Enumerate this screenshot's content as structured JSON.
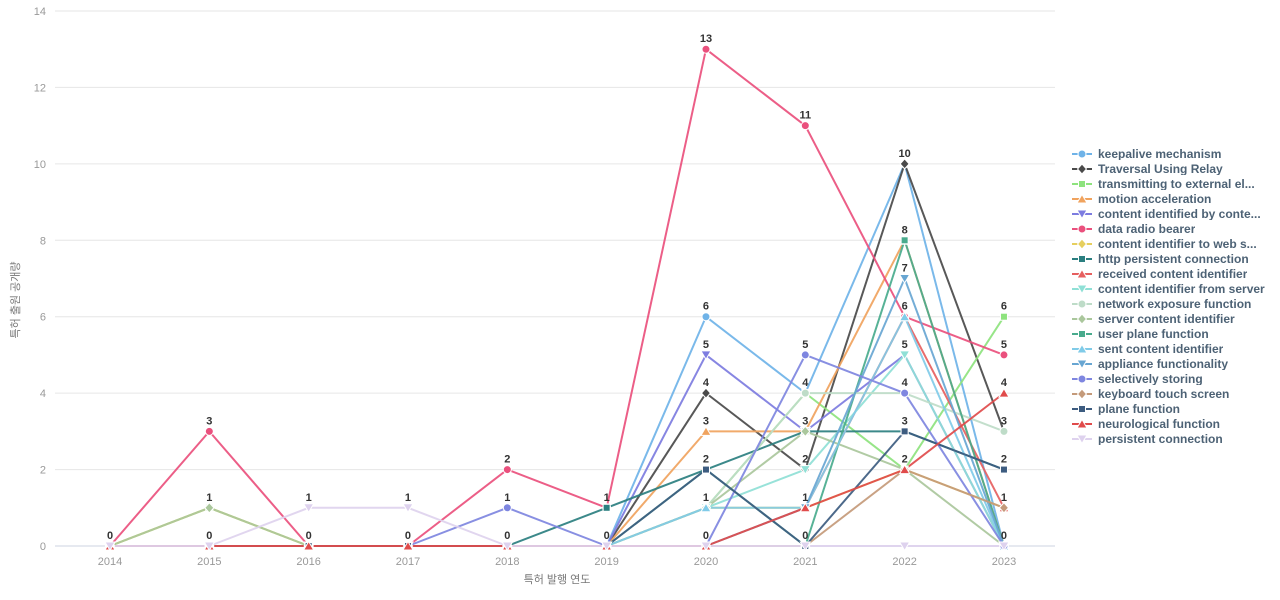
{
  "chart_data": {
    "type": "line",
    "title": "",
    "xlabel": "특허 발행 연도",
    "ylabel": "특허 출원 공개량",
    "x": [
      2014,
      2015,
      2016,
      2017,
      2018,
      2019,
      2020,
      2021,
      2022,
      2023
    ],
    "ylim": [
      0,
      14
    ],
    "yticks": [
      0,
      2,
      4,
      6,
      8,
      10,
      12,
      14
    ],
    "grid": true,
    "legend_position": "right",
    "series": [
      {
        "name": "keepalive mechanism",
        "color": "#6fb3e8",
        "marker": "circle",
        "values": [
          0,
          0,
          0,
          0,
          0,
          0,
          6,
          4,
          10,
          0
        ]
      },
      {
        "name": "Traversal Using Relay",
        "color": "#4a4a4a",
        "marker": "diamond",
        "values": [
          0,
          0,
          0,
          0,
          0,
          0,
          4,
          2,
          10,
          3
        ]
      },
      {
        "name": "transmitting to external el...",
        "color": "#8ee37e",
        "marker": "square",
        "values": [
          0,
          1,
          0,
          0,
          0,
          0,
          1,
          4,
          2,
          6
        ]
      },
      {
        "name": "motion acceleration",
        "color": "#f0a35e",
        "marker": "triangle",
        "values": [
          0,
          0,
          0,
          0,
          0,
          0,
          3,
          3,
          8,
          0
        ]
      },
      {
        "name": "content identified by conte...",
        "color": "#7d7ce0",
        "marker": "triangle-down",
        "values": [
          0,
          0,
          0,
          0,
          0,
          0,
          5,
          3,
          5,
          0
        ]
      },
      {
        "name": "data radio bearer",
        "color": "#ea507d",
        "marker": "circle",
        "values": [
          0,
          3,
          0,
          0,
          2,
          1,
          13,
          11,
          6,
          5
        ]
      },
      {
        "name": "content identifier to web s...",
        "color": "#e6cf5e",
        "marker": "diamond",
        "values": [
          0,
          1,
          0,
          0,
          0,
          0,
          1,
          1,
          2,
          1
        ]
      },
      {
        "name": "http persistent connection",
        "color": "#2b7f80",
        "marker": "square",
        "values": [
          0,
          0,
          0,
          0,
          0,
          1,
          2,
          3,
          3,
          2
        ]
      },
      {
        "name": "received content identifier",
        "color": "#e65f5f",
        "marker": "triangle",
        "values": [
          0,
          0,
          0,
          0,
          0,
          0,
          0,
          1,
          6,
          1
        ]
      },
      {
        "name": "content identifier from server",
        "color": "#8fe0d6",
        "marker": "triangle-down",
        "values": [
          0,
          0,
          0,
          0,
          0,
          0,
          1,
          2,
          5,
          0
        ]
      },
      {
        "name": "network exposure function",
        "color": "#bedcc8",
        "marker": "circle",
        "values": [
          0,
          0,
          0,
          0,
          0,
          0,
          1,
          4,
          4,
          3
        ]
      },
      {
        "name": "server content identifier",
        "color": "#aac79c",
        "marker": "diamond",
        "values": [
          0,
          1,
          0,
          0,
          0,
          0,
          1,
          3,
          2,
          0
        ]
      },
      {
        "name": "user plane function",
        "color": "#49ab8d",
        "marker": "square",
        "values": [
          0,
          0,
          0,
          0,
          0,
          0,
          2,
          0,
          8,
          0
        ]
      },
      {
        "name": "sent content identifier",
        "color": "#80cbe8",
        "marker": "triangle",
        "values": [
          0,
          0,
          0,
          0,
          0,
          0,
          1,
          1,
          6,
          0
        ]
      },
      {
        "name": "appliance functionality",
        "color": "#68a6d2",
        "marker": "triangle-down",
        "values": [
          0,
          0,
          0,
          0,
          0,
          0,
          0,
          1,
          7,
          0
        ]
      },
      {
        "name": "selectively storing",
        "color": "#7e86e0",
        "marker": "circle",
        "values": [
          0,
          0,
          0,
          0,
          1,
          0,
          0,
          5,
          4,
          0
        ]
      },
      {
        "name": "keyboard touch screen",
        "color": "#c49a7a",
        "marker": "diamond",
        "values": [
          0,
          0,
          0,
          0,
          0,
          0,
          0,
          0,
          2,
          1
        ]
      },
      {
        "name": "plane function",
        "color": "#3d5c80",
        "marker": "square",
        "values": [
          0,
          0,
          0,
          0,
          0,
          0,
          2,
          0,
          3,
          2
        ]
      },
      {
        "name": "neurological function",
        "color": "#e04b4b",
        "marker": "triangle",
        "values": [
          0,
          0,
          0,
          0,
          0,
          0,
          0,
          1,
          2,
          4
        ]
      },
      {
        "name": "persistent connection",
        "color": "#ded2ee",
        "marker": "triangle-down",
        "values": [
          0,
          0,
          1,
          1,
          0,
          0,
          0,
          0,
          0,
          0
        ]
      }
    ],
    "point_labels": {
      "2014": [
        0
      ],
      "2015": [
        3,
        1,
        0
      ],
      "2016": [
        1,
        0
      ],
      "2017": [
        1,
        0
      ],
      "2018": [
        2,
        1,
        0
      ],
      "2019": [
        1,
        0
      ],
      "2020": [
        13,
        6,
        5,
        4,
        3,
        2,
        1,
        0
      ],
      "2021": [
        11,
        5,
        4,
        3,
        2,
        1,
        0
      ],
      "2022": [
        10,
        8,
        7,
        6,
        5,
        4,
        3,
        2
      ],
      "2023": [
        6,
        5,
        4,
        3,
        2,
        1,
        0
      ]
    }
  },
  "colors": {
    "grid": "#e6e6e6",
    "axis_line": "#ccd3e0",
    "tick_label": "#999999",
    "axis_title": "#777777",
    "point_label": "#333333",
    "legend_text": "#4d6275"
  }
}
